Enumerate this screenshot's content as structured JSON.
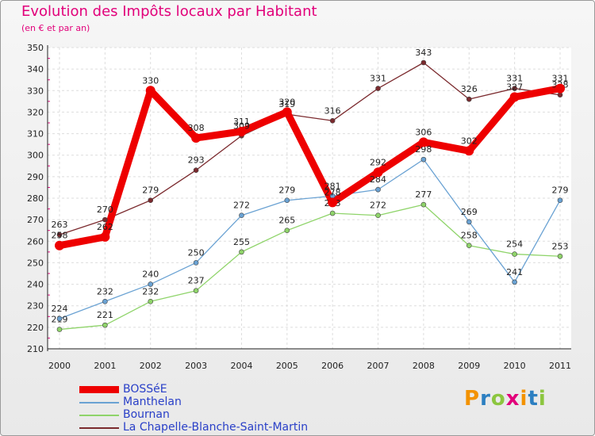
{
  "header": {
    "title": "Evolution des Impôts locaux par Habitant",
    "subtitle": "(en € et par an)"
  },
  "chart_data": {
    "type": "line",
    "title": "Evolution des Impôts locaux par Habitant",
    "subtitle": "(en € et par an)",
    "xlabel": "",
    "ylabel": "",
    "ylim": [
      210,
      350
    ],
    "yticks": [
      210,
      220,
      230,
      240,
      250,
      260,
      270,
      280,
      290,
      300,
      310,
      320,
      330,
      340,
      350
    ],
    "grid": true,
    "legend": "bottom-left",
    "categories": [
      "2000",
      "2001",
      "2002",
      "2003",
      "2004",
      "2005",
      "2006",
      "2007",
      "2008",
      "2009",
      "2010",
      "2011"
    ],
    "series": [
      {
        "name": "La Chapelle-Blanche-Saint-Martin",
        "color": "#7b2a2e",
        "values": [
          263,
          270,
          279,
          293,
          309,
          319,
          316,
          331,
          343,
          326,
          331,
          328
        ]
      },
      {
        "name": "Bournan",
        "color": "#8fd46a",
        "values": [
          219,
          221,
          232,
          237,
          255,
          265,
          273,
          272,
          277,
          258,
          254,
          253
        ]
      },
      {
        "name": "Manthelan",
        "color": "#6aa2d3",
        "values": [
          224,
          232,
          240,
          250,
          272,
          279,
          281,
          284,
          298,
          269,
          241,
          279
        ]
      },
      {
        "name": "BOSSéE",
        "color": "#ee0000",
        "values": [
          258,
          262,
          330,
          308,
          311,
          320,
          278,
          292,
          306,
          302,
          327,
          331
        ]
      }
    ]
  },
  "legend": {
    "items": [
      {
        "label": "BOSSéE",
        "color": "#ee0000"
      },
      {
        "label": "Manthelan",
        "color": "#6aa2d3"
      },
      {
        "label": "Bournan",
        "color": "#8fd46a"
      },
      {
        "label": "La Chapelle-Blanche-Saint-Martin",
        "color": "#7b2a2e"
      }
    ]
  },
  "logo": {
    "letters": [
      "P",
      "r",
      "o",
      "x",
      "i",
      "t",
      "i"
    ],
    "colors": [
      "#f39200",
      "#2c7fc1",
      "#8cc63f",
      "#e2007a",
      "#f39200",
      "#2c7fc1",
      "#8cc63f"
    ]
  }
}
